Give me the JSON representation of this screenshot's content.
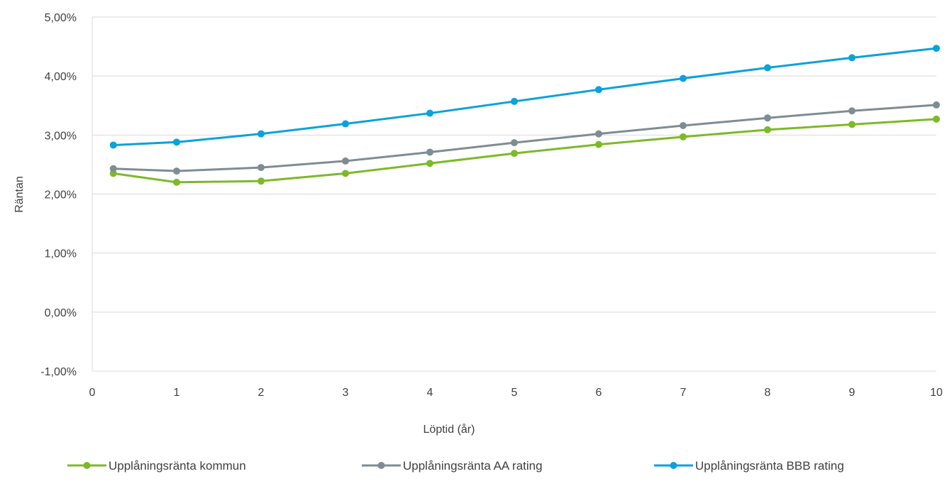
{
  "chart_data": {
    "type": "line",
    "title": "",
    "xlabel": "Löptid (år)",
    "ylabel": "Räntan",
    "xlim": [
      0,
      10
    ],
    "ylim": [
      -1,
      5
    ],
    "x_ticks": [
      0,
      1,
      2,
      3,
      4,
      5,
      6,
      7,
      8,
      9,
      10
    ],
    "x_tick_labels": [
      "0",
      "1",
      "2",
      "3",
      "4",
      "5",
      "6",
      "7",
      "8",
      "9",
      "10"
    ],
    "y_ticks": [
      -1,
      0,
      1,
      2,
      3,
      4,
      5
    ],
    "y_tick_labels": [
      "-1,00%",
      "0,00%",
      "1,00%",
      "2,00%",
      "3,00%",
      "4,00%",
      "5,00%"
    ],
    "grid": "horizontal",
    "legend_position": "bottom",
    "x": [
      0.25,
      1,
      2,
      3,
      4,
      5,
      6,
      7,
      8,
      9,
      10
    ],
    "series": [
      {
        "name": "Upplåningsränta kommun",
        "color": "#7DB928",
        "values": [
          2.35,
          2.2,
          2.22,
          2.35,
          2.52,
          2.69,
          2.84,
          2.97,
          3.09,
          3.18,
          3.27
        ]
      },
      {
        "name": "Upplåningsränta AA rating",
        "color": "#7F8C93",
        "values": [
          2.43,
          2.39,
          2.45,
          2.56,
          2.71,
          2.87,
          3.02,
          3.16,
          3.29,
          3.41,
          3.51
        ]
      },
      {
        "name": "Upplåningsränta BBB rating",
        "color": "#0BA1DC",
        "values": [
          2.83,
          2.88,
          3.02,
          3.19,
          3.37,
          3.57,
          3.77,
          3.96,
          4.14,
          4.31,
          4.47
        ]
      }
    ]
  }
}
